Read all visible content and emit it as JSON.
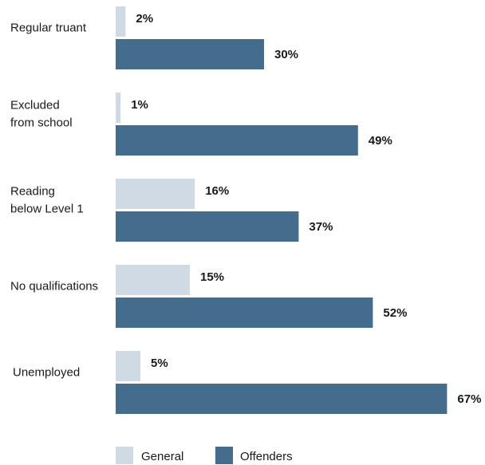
{
  "chart_data": {
    "type": "bar",
    "orientation": "horizontal",
    "categories": [
      [
        "Regular truant"
      ],
      [
        "Excluded",
        "from school"
      ],
      [
        "Reading",
        "below Level 1"
      ],
      [
        "No qualifications"
      ],
      [
        "Unemployed"
      ]
    ],
    "series": [
      {
        "name": "General",
        "values": [
          2,
          1,
          16,
          15,
          5
        ],
        "labels": [
          "2%",
          "1%",
          "16%",
          "15%",
          "5%"
        ],
        "color": "#cfdae4"
      },
      {
        "name": "Offenders",
        "values": [
          30,
          49,
          37,
          52,
          67
        ],
        "labels": [
          "30%",
          "49%",
          "37%",
          "52%",
          "67%"
        ],
        "color": "#446c8c"
      }
    ],
    "value_unit": "%",
    "legend_position": "bottom",
    "grid": false
  }
}
